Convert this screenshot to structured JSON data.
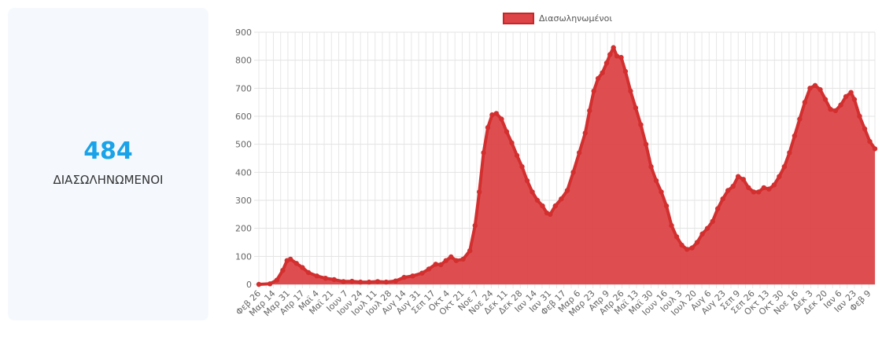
{
  "stat": {
    "value": "484",
    "label": "ΔΙΑΣΩΛΗΝΩΜΕΝΟΙ",
    "value_color": "#1aa3e8"
  },
  "chart_data": {
    "type": "area",
    "legend": {
      "position": "top",
      "label": "Διασωληνωμένοι"
    },
    "series_color": "#d32f2f",
    "fill_color": "#dc4448",
    "grid": true,
    "ylim": [
      0,
      900
    ],
    "yticks": [
      0,
      100,
      200,
      300,
      400,
      500,
      600,
      700,
      800,
      900
    ],
    "series": [
      {
        "name": "Διασωληνωμένοι",
        "x_start": "2020-02-26",
        "points": [
          [
            "2020-02-26",
            0
          ],
          [
            "2020-03-10",
            2
          ],
          [
            "2020-03-18",
            15
          ],
          [
            "2020-03-25",
            50
          ],
          [
            "2020-03-30",
            85
          ],
          [
            "2020-04-03",
            90
          ],
          [
            "2020-04-10",
            75
          ],
          [
            "2020-04-17",
            60
          ],
          [
            "2020-04-24",
            42
          ],
          [
            "2020-05-04",
            30
          ],
          [
            "2020-05-14",
            22
          ],
          [
            "2020-05-24",
            17
          ],
          [
            "2020-06-04",
            10
          ],
          [
            "2020-06-14",
            11
          ],
          [
            "2020-06-24",
            8
          ],
          [
            "2020-07-04",
            8
          ],
          [
            "2020-07-14",
            10
          ],
          [
            "2020-07-24",
            8
          ],
          [
            "2020-08-04",
            12
          ],
          [
            "2020-08-14",
            25
          ],
          [
            "2020-08-24",
            30
          ],
          [
            "2020-09-04",
            40
          ],
          [
            "2020-09-12",
            55
          ],
          [
            "2020-09-20",
            72
          ],
          [
            "2020-09-26",
            70
          ],
          [
            "2020-10-02",
            85
          ],
          [
            "2020-10-08",
            98
          ],
          [
            "2020-10-14",
            85
          ],
          [
            "2020-10-22",
            90
          ],
          [
            "2020-10-30",
            120
          ],
          [
            "2020-11-05",
            210
          ],
          [
            "2020-11-10",
            330
          ],
          [
            "2020-11-15",
            470
          ],
          [
            "2020-11-20",
            560
          ],
          [
            "2020-11-25",
            605
          ],
          [
            "2020-11-30",
            610
          ],
          [
            "2020-12-06",
            590
          ],
          [
            "2020-12-12",
            545
          ],
          [
            "2020-12-18",
            505
          ],
          [
            "2020-12-24",
            460
          ],
          [
            "2020-12-30",
            420
          ],
          [
            "2021-01-05",
            370
          ],
          [
            "2021-01-11",
            330
          ],
          [
            "2021-01-17",
            300
          ],
          [
            "2021-01-23",
            280
          ],
          [
            "2021-01-28",
            255
          ],
          [
            "2021-02-01",
            250
          ],
          [
            "2021-02-07",
            280
          ],
          [
            "2021-02-14",
            305
          ],
          [
            "2021-02-21",
            335
          ],
          [
            "2021-02-28",
            400
          ],
          [
            "2021-03-07",
            470
          ],
          [
            "2021-03-14",
            540
          ],
          [
            "2021-03-19",
            620
          ],
          [
            "2021-03-24",
            690
          ],
          [
            "2021-03-29",
            735
          ],
          [
            "2021-04-03",
            755
          ],
          [
            "2021-04-08",
            790
          ],
          [
            "2021-04-12",
            820
          ],
          [
            "2021-04-16",
            845
          ],
          [
            "2021-04-20",
            815
          ],
          [
            "2021-04-25",
            810
          ],
          [
            "2021-04-30",
            760
          ],
          [
            "2021-05-06",
            690
          ],
          [
            "2021-05-12",
            630
          ],
          [
            "2021-05-18",
            570
          ],
          [
            "2021-05-24",
            500
          ],
          [
            "2021-05-30",
            420
          ],
          [
            "2021-06-05",
            370
          ],
          [
            "2021-06-11",
            330
          ],
          [
            "2021-06-17",
            280
          ],
          [
            "2021-06-23",
            210
          ],
          [
            "2021-06-29",
            170
          ],
          [
            "2021-07-05",
            140
          ],
          [
            "2021-07-11",
            125
          ],
          [
            "2021-07-17",
            130
          ],
          [
            "2021-07-23",
            150
          ],
          [
            "2021-07-29",
            180
          ],
          [
            "2021-08-04",
            200
          ],
          [
            "2021-08-10",
            225
          ],
          [
            "2021-08-16",
            270
          ],
          [
            "2021-08-22",
            305
          ],
          [
            "2021-08-28",
            335
          ],
          [
            "2021-09-03",
            350
          ],
          [
            "2021-09-09",
            385
          ],
          [
            "2021-09-15",
            375
          ],
          [
            "2021-09-21",
            345
          ],
          [
            "2021-09-27",
            330
          ],
          [
            "2021-10-03",
            330
          ],
          [
            "2021-10-09",
            345
          ],
          [
            "2021-10-15",
            340
          ],
          [
            "2021-10-21",
            355
          ],
          [
            "2021-10-27",
            385
          ],
          [
            "2021-11-02",
            420
          ],
          [
            "2021-11-08",
            470
          ],
          [
            "2021-11-14",
            530
          ],
          [
            "2021-11-20",
            590
          ],
          [
            "2021-11-26",
            650
          ],
          [
            "2021-12-02",
            700
          ],
          [
            "2021-12-08",
            710
          ],
          [
            "2021-12-14",
            695
          ],
          [
            "2021-12-20",
            660
          ],
          [
            "2021-12-26",
            625
          ],
          [
            "2022-01-01",
            620
          ],
          [
            "2022-01-07",
            640
          ],
          [
            "2022-01-13",
            670
          ],
          [
            "2022-01-19",
            685
          ],
          [
            "2022-01-23",
            660
          ],
          [
            "2022-01-29",
            600
          ],
          [
            "2022-02-04",
            555
          ],
          [
            "2022-02-10",
            510
          ],
          [
            "2022-02-16",
            484
          ]
        ]
      }
    ],
    "x_tick_labels": [
      "Φεβ 26",
      "Μαρ 14",
      "Μαρ 31",
      "Απρ 17",
      "Μαϊ 4",
      "Μαϊ 21",
      "Ιουν 7",
      "Ιουν 24",
      "Ιουλ 11",
      "Ιουλ 28",
      "Αυγ 14",
      "Αυγ 31",
      "Σεπ 17",
      "Οκτ 4",
      "Οκτ 21",
      "Νοε 7",
      "Νοε 24",
      "Δεκ 11",
      "Δεκ 28",
      "Ιαν 14",
      "Ιαν 31",
      "Φεβ 17",
      "Μαρ 6",
      "Μαρ 23",
      "Απρ 9",
      "Απρ 26",
      "Μαϊ 13",
      "Μαϊ 30",
      "Ιουν 16",
      "Ιουλ 3",
      "Ιουλ 20",
      "Αυγ 6",
      "Αυγ 23",
      "Σεπ 9",
      "Σεπ 26",
      "Οκτ 13",
      "Οκτ 30",
      "Νοε 16",
      "Δεκ 3",
      "Δεκ 20",
      "Ιαν 6",
      "Ιαν 23",
      "Φεβ 9"
    ]
  }
}
